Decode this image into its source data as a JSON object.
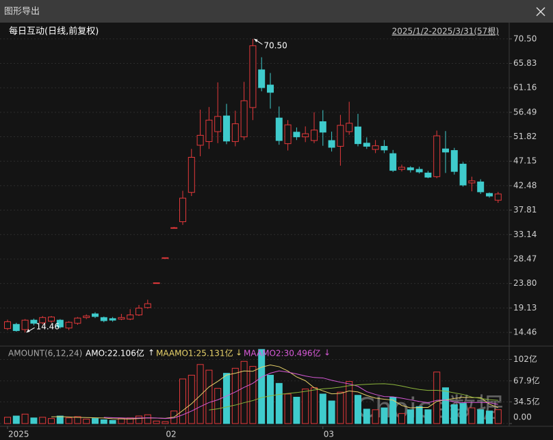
{
  "window_title": "图形导出",
  "chart_data": [
    {
      "type": "candlestick",
      "title": "每日互动(日线,前复权)",
      "range_label": "2025/1/2-2025/3/31(57根)",
      "open": [
        15.2,
        16.0,
        15.0,
        16.8,
        16.3,
        16.6,
        16.8,
        15.3,
        16.2,
        17.3,
        18.0,
        17.3,
        17.1,
        17.0,
        17.0,
        17.8,
        19.2,
        23.93,
        28.72,
        34.46,
        35.6,
        41.2,
        50.2,
        50.9,
        52.8,
        55.8,
        50.9,
        51.8,
        57.4,
        64.6,
        61.7,
        55.4,
        50.5,
        52.7,
        51.8,
        51.1,
        54.7,
        51.1,
        50.0,
        52.8,
        53.7,
        50.6,
        49.4,
        50.0,
        48.6,
        45.6,
        45.9,
        45.6,
        44.9,
        44.2,
        49.5,
        49.2,
        46.6,
        43.0,
        43.2,
        41.0,
        39.7
      ],
      "high": [
        16.9,
        16.3,
        17.0,
        17.1,
        17.6,
        17.6,
        17.0,
        16.6,
        17.4,
        17.9,
        18.3,
        17.5,
        17.4,
        18.0,
        18.9,
        19.7,
        20.7,
        23.93,
        28.72,
        34.6,
        41.5,
        49.5,
        57.0,
        57.5,
        62.2,
        58.1,
        56.8,
        62.3,
        70.5,
        67.0,
        64.0,
        57.6,
        55.0,
        53.6,
        53.8,
        56.5,
        56.9,
        52.8,
        56.0,
        58.5,
        56.2,
        51.7,
        51.2,
        51.2,
        49.3,
        46.5,
        46.2,
        46.1,
        45.3,
        53.0,
        52.9,
        49.7,
        47.0,
        44.2,
        43.7,
        41.2,
        41.3
      ],
      "low": [
        14.9,
        14.6,
        14.46,
        15.8,
        16.0,
        16.3,
        15.2,
        14.9,
        15.9,
        17.0,
        17.2,
        16.4,
        16.5,
        16.8,
        16.8,
        17.6,
        19.0,
        23.93,
        28.72,
        34.3,
        35.0,
        40.5,
        48.1,
        49.5,
        50.6,
        50.4,
        50.0,
        51.2,
        55.0,
        60.5,
        57.2,
        50.3,
        49.2,
        51.2,
        50.8,
        50.6,
        50.1,
        49.0,
        46.3,
        52.2,
        50.0,
        49.5,
        48.7,
        48.7,
        45.1,
        45.2,
        45.0,
        44.8,
        43.9,
        43.9,
        44.9,
        44.6,
        42.3,
        41.4,
        40.9,
        40.2,
        39.2
      ],
      "close": [
        16.5,
        14.8,
        16.8,
        16.2,
        17.3,
        17.4,
        15.5,
        16.4,
        17.2,
        17.6,
        17.5,
        16.7,
        16.8,
        17.3,
        17.8,
        19.1,
        19.94,
        23.93,
        28.72,
        34.46,
        40.1,
        47.9,
        52.1,
        55.0,
        55.7,
        51.0,
        54.3,
        58.7,
        69.2,
        61.2,
        60.3,
        51.1,
        54.1,
        51.8,
        52.4,
        53.1,
        52.7,
        49.8,
        54.0,
        54.4,
        50.5,
        50.0,
        50.1,
        49.3,
        45.4,
        46.0,
        45.5,
        45.1,
        44.1,
        52.0,
        48.9,
        45.2,
        42.6,
        43.4,
        41.3,
        40.5,
        40.9
      ],
      "up_color": "#e5393b",
      "down_color": "#3fcbcc",
      "ylim": [
        12.5,
        72.7
      ],
      "yticks": [
        {
          "value": 70.5,
          "label": "70.50"
        },
        65.83,
        61.16,
        56.49,
        51.82,
        47.15,
        42.48,
        37.81,
        33.14,
        28.47,
        {
          "value": 23.8,
          "label": "23.80"
        },
        19.13,
        14.46
      ],
      "grid": true,
      "annotations": [
        {
          "label": "70.50",
          "value": 70.5
        },
        {
          "label": "14.46",
          "value": 14.46
        }
      ],
      "watermark": "Choice数据"
    },
    {
      "type": "bar",
      "indicator": "AMOUNT(6,12,24)",
      "categories": [
        "2025",
        null,
        null,
        null,
        null,
        null,
        null,
        null,
        null,
        null,
        null,
        null,
        null,
        null,
        null,
        null,
        null,
        null,
        "02",
        null,
        null,
        null,
        null,
        null,
        null,
        null,
        null,
        null,
        null,
        null,
        null,
        null,
        null,
        null,
        null,
        null,
        "03",
        null,
        null,
        null,
        null,
        null,
        null,
        null,
        null,
        null,
        null,
        null,
        null,
        null,
        null,
        null,
        null,
        null,
        null,
        null,
        null
      ],
      "series": [
        {
          "name": "AMO:22.106亿",
          "color": "#ffffff",
          "values": [
            10,
            12,
            15,
            9,
            10,
            8,
            12,
            9,
            11,
            7,
            8,
            6,
            5,
            8,
            9,
            12,
            14,
            4,
            3,
            20,
            71,
            77,
            94,
            85,
            56,
            80,
            88,
            99,
            91,
            118,
            77,
            64,
            47,
            42,
            55,
            57,
            47,
            36,
            50,
            67,
            45,
            23,
            22,
            25,
            42,
            16,
            22,
            27,
            22,
            82,
            57,
            30,
            32,
            25,
            22,
            20,
            22.106
          ]
        },
        {
          "name": "MAAMO1:25.131亿",
          "color": "#e8d26a",
          "values": [
            null,
            null,
            null,
            null,
            null,
            10.7,
            11,
            10.5,
            9.8,
            9.5,
            9.2,
            8.8,
            7.7,
            7.5,
            7.2,
            8,
            9,
            8.7,
            8.3,
            10.3,
            20.7,
            31.5,
            44.8,
            58.3,
            67.2,
            77.2,
            80,
            83.7,
            83.2,
            89.7,
            93.2,
            90.5,
            83.7,
            74.2,
            68.2,
            57,
            52,
            47.3,
            47.8,
            52,
            50.3,
            44.7,
            40.5,
            38.7,
            37.3,
            28.8,
            25,
            25.7,
            25.7,
            35.2,
            37.7,
            40,
            41.7,
            41.3,
            41.3,
            31,
            25.131
          ]
        },
        {
          "name": "MAAMO2:30.496亿",
          "color": "#d85ad8",
          "values": [
            null,
            null,
            null,
            null,
            null,
            null,
            null,
            null,
            null,
            null,
            null,
            9.8,
            9.3,
            9,
            8.5,
            8.8,
            9.1,
            8.8,
            8,
            8.9,
            13.9,
            19.8,
            26.9,
            33.5,
            37.8,
            43.8,
            50.3,
            57.6,
            64,
            74,
            80.2,
            83.8,
            81.8,
            78.9,
            75.7,
            73.3,
            72.6,
            68.9,
            65.8,
            63.1,
            59.3,
            50.8,
            46.3,
            43,
            42.6,
            40.4,
            37.7,
            35.2,
            33.1,
            36.9,
            37.5,
            34.4,
            33.3,
            33.5,
            33.5,
            33.1,
            30.496
          ]
        },
        {
          "color": "#8db63c",
          "values": [
            null,
            null,
            null,
            null,
            null,
            null,
            null,
            null,
            null,
            null,
            null,
            null,
            null,
            null,
            null,
            null,
            null,
            null,
            null,
            null,
            null,
            null,
            null,
            21.6,
            23.5,
            26.4,
            29.4,
            33.2,
            36.5,
            41.4,
            44.1,
            46.4,
            47.9,
            49.3,
            51.3,
            53.4,
            55.2,
            56.3,
            58,
            60.3,
            61.6,
            62.4,
            63.2,
            63.4,
            62.2,
            59.7,
            56.7,
            54.3,
            52.8,
            52.9,
            51.6,
            48.8,
            46.3,
            42.2,
            39.9,
            38,
            37
          ]
        }
      ],
      "legend_arrows": [
        "↑",
        "↓",
        "↓"
      ],
      "ylim": [
        0,
        120
      ],
      "yticks": [
        {
          "value": 102,
          "label": "102亿"
        },
        {
          "value": 67.9,
          "label": "67.9亿"
        },
        {
          "value": 34.5,
          "label": "34.5亿"
        },
        {
          "value": 0,
          "label": "0.00"
        }
      ],
      "grid": true
    }
  ]
}
